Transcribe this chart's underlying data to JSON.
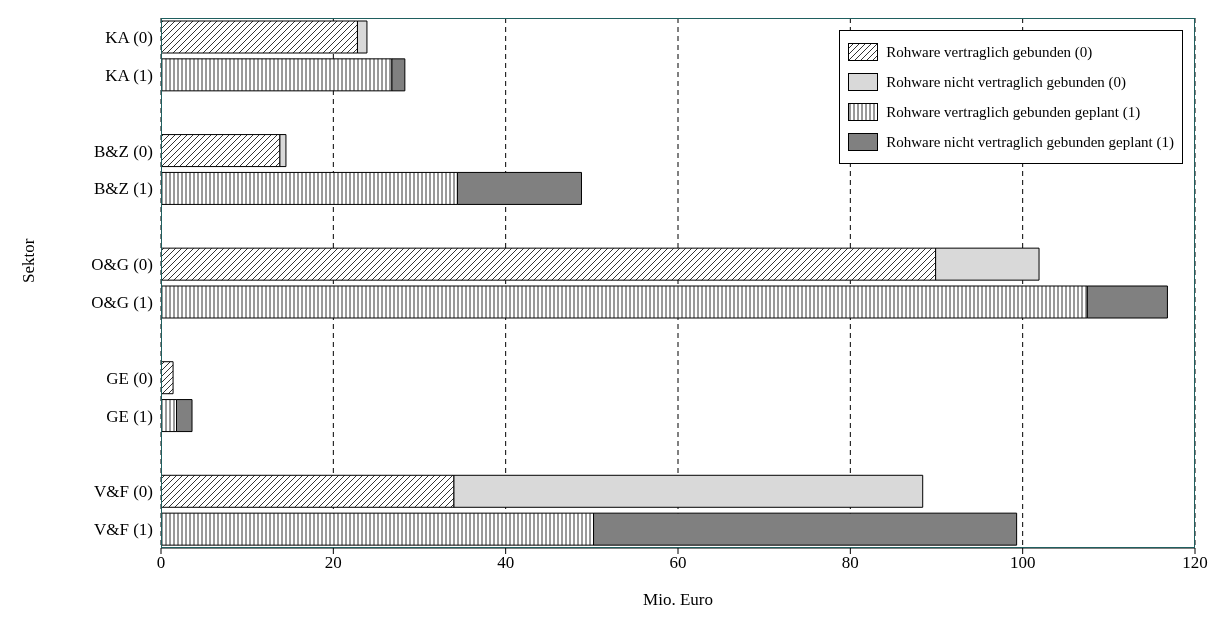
{
  "chart_data": {
    "type": "bar",
    "orientation": "horizontal",
    "stacked": true,
    "categories": [
      "KA (0)",
      "KA (1)",
      null,
      "B&Z (0)",
      "B&Z (1)",
      null,
      "O&G (0)",
      "O&G (1)",
      null,
      "GE (0)",
      "GE (1)",
      null,
      "V&F (0)",
      "V&F (1)"
    ],
    "series": [
      {
        "name": "Rohware vertraglich gebunden (0)",
        "color": "#000000",
        "values": [
          22.8,
          null,
          null,
          13.8,
          null,
          null,
          89.9,
          null,
          null,
          1.4,
          null,
          null,
          34.0,
          null
        ]
      },
      {
        "name": "Rohware nicht vertraglich gebunden (0)",
        "color": "#d9d9d9",
        "values": [
          1.1,
          null,
          null,
          0.7,
          null,
          null,
          12.0,
          null,
          null,
          null,
          null,
          null,
          54.4,
          null
        ]
      },
      {
        "name": "Rohware vertraglich gebunden geplant (1)",
        "color": "#000000",
        "values": [
          null,
          26.8,
          null,
          null,
          34.4,
          null,
          null,
          107.5,
          null,
          null,
          1.8,
          null,
          null,
          50.2
        ]
      },
      {
        "name": "Rohware nicht vertraglich gebunden geplant (1)",
        "color": "#808080",
        "values": [
          null,
          1.5,
          null,
          null,
          14.4,
          null,
          null,
          9.3,
          null,
          null,
          1.8,
          null,
          null,
          49.1
        ]
      }
    ],
    "xlim": [
      0,
      120
    ],
    "xticks": [
      0,
      20,
      40,
      60,
      80,
      100,
      120
    ],
    "xlabel": "Mio. Euro",
    "ylabel": "Sektor",
    "grid": "x",
    "legend": "top right"
  }
}
